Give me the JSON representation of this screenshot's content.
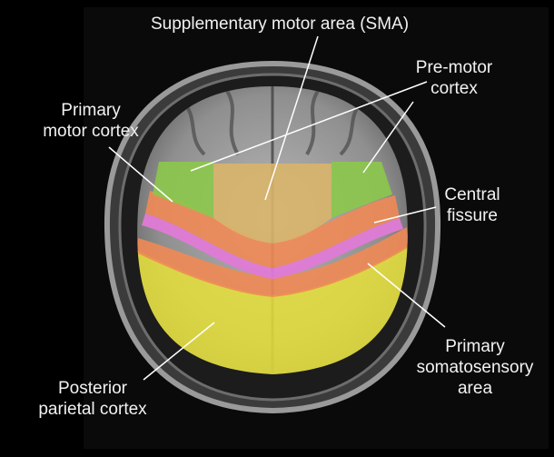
{
  "labels": {
    "sma": "Supplementary motor area (SMA)",
    "premotor_line1": "Pre-motor",
    "premotor_line2": "cortex",
    "primary_motor_line1": "Primary",
    "primary_motor_line2": "motor cortex",
    "central_line1": "Central",
    "central_line2": "fissure",
    "somato_line1": "Primary",
    "somato_line2": "somatosensory",
    "somato_line3": "area",
    "parietal_line1": "Posterior",
    "parietal_line2": "parietal cortex"
  },
  "colors": {
    "background": "#000000",
    "sma": "#d9b46a",
    "premotor": "#8cc84b",
    "primary_motor": "#f08a55",
    "central_fissure": "#e07ad6",
    "somatosensory": "#f08a55",
    "parietal": "#e8e23a",
    "leader_lines": "#ffffff"
  }
}
